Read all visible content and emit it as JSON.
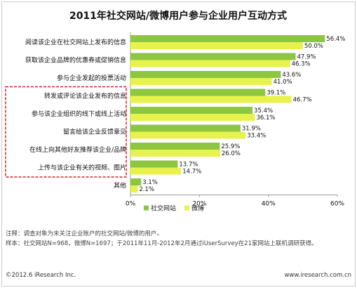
{
  "chart_data": {
    "type": "bar",
    "orientation": "horizontal",
    "title": "2011年社交网站/微博用户参与企业用户互动方式",
    "categories": [
      "阅读该企业在社交网站上发布的信息",
      "获取该企业品牌的优惠券或促销信息",
      "参与企业发起的投票活动",
      "转发或评论该企业发布的信息",
      "参与该企业组织的线下或线上活动",
      "留言给该企业反馈意见",
      "在线上向其他好友推荐该企业/品牌",
      "上传与该企业有关的视频、图片",
      "其他"
    ],
    "series": [
      {
        "name": "社交网站",
        "color": "#8dc63f",
        "values": [
          56.4,
          47.9,
          43.6,
          39.1,
          35.4,
          31.9,
          25.9,
          13.7,
          3.1
        ]
      },
      {
        "name": "微博",
        "color": "#e8f24d",
        "values": [
          50.0,
          46.3,
          41.0,
          46.7,
          36.1,
          33.4,
          26.0,
          14.7,
          2.1
        ]
      }
    ],
    "value_labels": [
      [
        "56.4%",
        "47.9%",
        "43.6%",
        "39.1%",
        "35.4%",
        "31.9%",
        "25.9%",
        "13.7%",
        "3.1%"
      ],
      [
        "50.0%",
        "46.3%",
        "41.0%",
        "46.7%",
        "36.1%",
        "33.4%",
        "26.0%",
        "14.7%",
        "2.1%"
      ]
    ],
    "xlim": [
      0,
      60
    ],
    "xticks": [
      "0%",
      "20%",
      "40%",
      "60%"
    ],
    "legend_position": "bottom",
    "highlight_categories": [
      3,
      7
    ]
  },
  "notes": {
    "line1": "注释：调查对象为未关注企业账户的社交网站/微博的用户。",
    "line2": "样本：社交网站N=968，微博N=1697；于2011年11月-2012年2月通过iUserSurvey在21家网站上联机调研获得。"
  },
  "footer": {
    "left": "©2012.6 iResearch Inc.",
    "right": "www.iresearch.com.cn"
  }
}
